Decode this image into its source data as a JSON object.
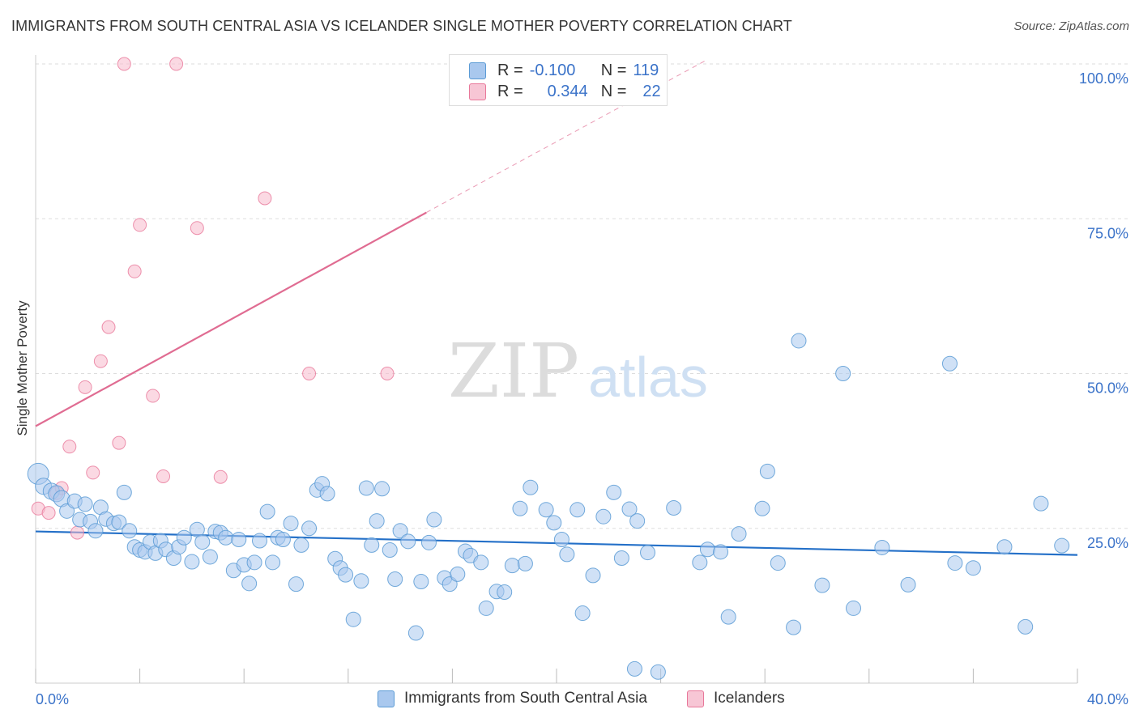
{
  "title": "IMMIGRANTS FROM SOUTH CENTRAL ASIA VS ICELANDER SINGLE MOTHER POVERTY CORRELATION CHART",
  "source": "Source: ZipAtlas.com",
  "watermark": {
    "zip": "ZIP",
    "atlas": "atlas"
  },
  "legend": {
    "r_label": "R =",
    "n_label": "N =",
    "rows": [
      {
        "r": "-0.100",
        "n": "119"
      },
      {
        "r": "0.344",
        "n": "22"
      }
    ]
  },
  "chart_data": {
    "type": "scatter",
    "title": "IMMIGRANTS FROM SOUTH CENTRAL ASIA VS ICELANDER SINGLE MOTHER POVERTY CORRELATION CHART",
    "xlabel": "",
    "ylabel": "Single Mother Poverty",
    "xlim": [
      0,
      40
    ],
    "ylim": [
      0,
      100
    ],
    "x_tick_labels": [
      "0.0%",
      "40.0%"
    ],
    "y_tick_labels": [
      "25.0%",
      "50.0%",
      "75.0%",
      "100.0%"
    ],
    "y_ticks": [
      25,
      50,
      75,
      100
    ],
    "grid": true,
    "legend_position": "top-center",
    "colors": {
      "blue": "#5b9bd5",
      "blue_fill": "#a9c8ee",
      "blue_line": "#2470c8",
      "pink": "#e8789a",
      "pink_fill": "#f7b9cc",
      "pink_line": "#e06c92",
      "tick_text": "#3b73c9"
    },
    "series": [
      {
        "name": "Immigrants from South Central Asia",
        "color": "#5b9bd5",
        "trend": {
          "x": [
            0,
            40
          ],
          "y": [
            24.5,
            20.7
          ]
        },
        "points": [
          [
            0.1,
            33.8
          ],
          [
            0.3,
            31.8
          ],
          [
            0.6,
            31.0
          ],
          [
            0.8,
            30.6
          ],
          [
            1.0,
            29.8
          ],
          [
            1.2,
            27.8
          ],
          [
            1.5,
            29.4
          ],
          [
            1.7,
            26.4
          ],
          [
            1.9,
            28.9
          ],
          [
            2.1,
            26.1
          ],
          [
            2.3,
            24.6
          ],
          [
            2.5,
            28.4
          ],
          [
            2.7,
            26.5
          ],
          [
            3.0,
            25.8
          ],
          [
            3.2,
            26.0
          ],
          [
            3.4,
            30.8
          ],
          [
            3.6,
            24.6
          ],
          [
            3.8,
            22.0
          ],
          [
            4.0,
            21.5
          ],
          [
            4.2,
            21.2
          ],
          [
            4.4,
            22.8
          ],
          [
            4.6,
            21.0
          ],
          [
            4.8,
            23.0
          ],
          [
            5.0,
            21.6
          ],
          [
            5.3,
            20.2
          ],
          [
            5.5,
            22.0
          ],
          [
            5.7,
            23.5
          ],
          [
            6.0,
            19.6
          ],
          [
            6.2,
            24.8
          ],
          [
            6.4,
            22.8
          ],
          [
            6.7,
            20.4
          ],
          [
            6.9,
            24.5
          ],
          [
            7.1,
            24.3
          ],
          [
            7.3,
            23.5
          ],
          [
            7.6,
            18.2
          ],
          [
            7.8,
            23.2
          ],
          [
            8.0,
            19.1
          ],
          [
            8.2,
            16.1
          ],
          [
            8.4,
            19.5
          ],
          [
            8.6,
            23.0
          ],
          [
            8.9,
            27.7
          ],
          [
            9.1,
            19.5
          ],
          [
            9.3,
            23.5
          ],
          [
            9.5,
            23.2
          ],
          [
            9.8,
            25.8
          ],
          [
            10.0,
            16.0
          ],
          [
            10.2,
            22.3
          ],
          [
            10.5,
            25.0
          ],
          [
            10.8,
            31.2
          ],
          [
            11.0,
            32.2
          ],
          [
            11.2,
            30.6
          ],
          [
            11.5,
            20.1
          ],
          [
            11.7,
            18.6
          ],
          [
            11.9,
            17.5
          ],
          [
            12.2,
            10.3
          ],
          [
            12.5,
            16.5
          ],
          [
            12.7,
            31.5
          ],
          [
            12.9,
            22.3
          ],
          [
            13.1,
            26.2
          ],
          [
            13.3,
            31.4
          ],
          [
            13.6,
            21.5
          ],
          [
            13.8,
            16.8
          ],
          [
            14.0,
            24.6
          ],
          [
            14.3,
            22.9
          ],
          [
            14.6,
            8.1
          ],
          [
            14.8,
            16.4
          ],
          [
            15.1,
            22.7
          ],
          [
            15.3,
            26.4
          ],
          [
            15.7,
            17.0
          ],
          [
            15.9,
            16.0
          ],
          [
            16.2,
            17.6
          ],
          [
            16.5,
            21.3
          ],
          [
            16.7,
            20.6
          ],
          [
            17.1,
            19.5
          ],
          [
            17.3,
            12.1
          ],
          [
            17.7,
            14.8
          ],
          [
            18.0,
            14.7
          ],
          [
            18.3,
            19.0
          ],
          [
            18.6,
            28.2
          ],
          [
            18.8,
            19.3
          ],
          [
            19.0,
            31.6
          ],
          [
            19.6,
            28.0
          ],
          [
            19.9,
            25.9
          ],
          [
            20.2,
            23.2
          ],
          [
            20.4,
            20.8
          ],
          [
            20.8,
            28.0
          ],
          [
            21.0,
            11.3
          ],
          [
            21.4,
            17.4
          ],
          [
            21.8,
            26.9
          ],
          [
            22.2,
            30.8
          ],
          [
            22.5,
            20.2
          ],
          [
            22.8,
            28.1
          ],
          [
            23.0,
            2.3
          ],
          [
            23.1,
            26.2
          ],
          [
            23.5,
            21.1
          ],
          [
            23.9,
            1.8
          ],
          [
            24.5,
            28.3
          ],
          [
            25.5,
            19.5
          ],
          [
            25.8,
            21.6
          ],
          [
            26.3,
            21.2
          ],
          [
            26.6,
            10.7
          ],
          [
            27.0,
            24.1
          ],
          [
            27.9,
            28.2
          ],
          [
            28.1,
            34.2
          ],
          [
            28.5,
            19.4
          ],
          [
            29.1,
            9.0
          ],
          [
            29.3,
            55.3
          ],
          [
            30.2,
            15.8
          ],
          [
            31.0,
            50.0
          ],
          [
            31.4,
            12.1
          ],
          [
            32.5,
            21.9
          ],
          [
            33.5,
            15.9
          ],
          [
            35.1,
            51.6
          ],
          [
            35.3,
            19.4
          ],
          [
            36.0,
            18.6
          ],
          [
            37.2,
            22.0
          ],
          [
            38.0,
            9.1
          ],
          [
            38.6,
            29.0
          ],
          [
            39.4,
            22.2
          ]
        ]
      },
      {
        "name": "Icelanders",
        "color": "#e8789a",
        "trend": {
          "x": [
            0,
            15
          ],
          "y": [
            41.5,
            76.0
          ]
        },
        "trend_dashed": {
          "x": [
            15,
            25.7
          ],
          "y": [
            76.0,
            100.5
          ]
        },
        "points": [
          [
            0.1,
            28.2
          ],
          [
            0.5,
            27.5
          ],
          [
            0.8,
            30.7
          ],
          [
            1.0,
            31.5
          ],
          [
            1.3,
            38.2
          ],
          [
            1.6,
            24.3
          ],
          [
            1.9,
            47.8
          ],
          [
            2.2,
            34.0
          ],
          [
            2.5,
            52.0
          ],
          [
            2.8,
            57.5
          ],
          [
            3.2,
            38.8
          ],
          [
            3.4,
            100
          ],
          [
            3.8,
            66.5
          ],
          [
            4.0,
            74.0
          ],
          [
            4.5,
            46.4
          ],
          [
            4.9,
            33.4
          ],
          [
            5.4,
            100
          ],
          [
            6.2,
            73.5
          ],
          [
            7.1,
            33.3
          ],
          [
            8.8,
            78.3
          ],
          [
            10.5,
            50.0
          ],
          [
            13.5,
            50.0
          ]
        ]
      }
    ]
  }
}
